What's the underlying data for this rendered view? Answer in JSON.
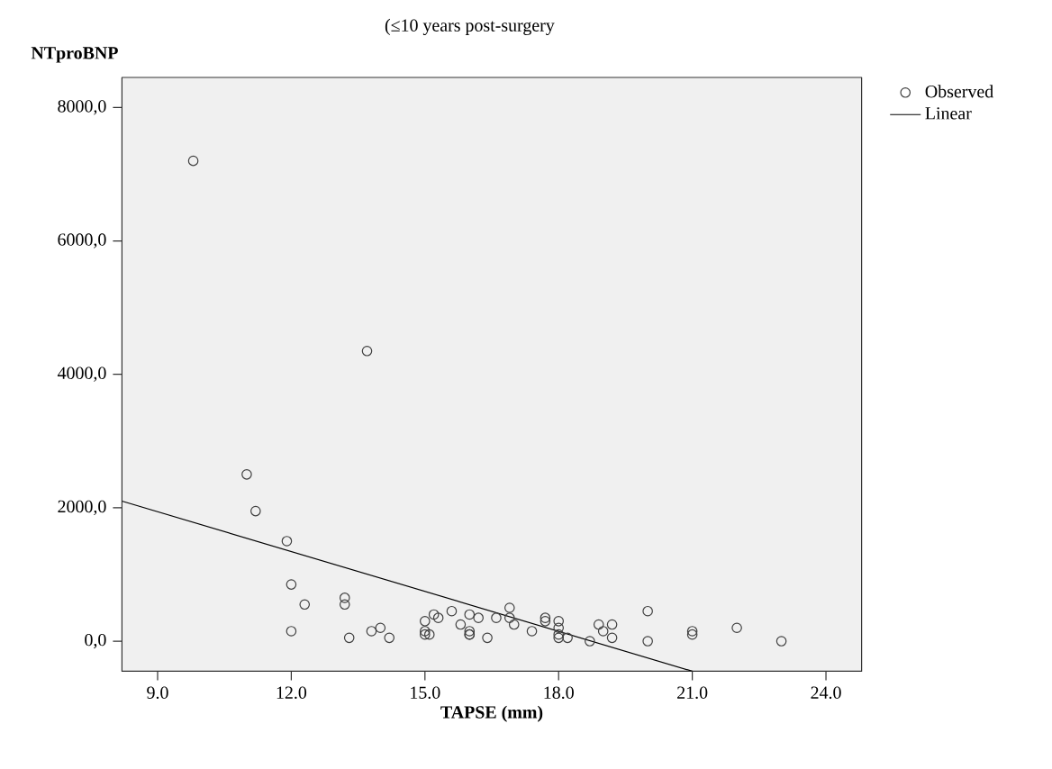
{
  "chart_data": {
    "type": "scatter",
    "title": "(≤10 years post-surgery",
    "xlabel": "TAPSE (mm)",
    "ylabel": "NTproBNP",
    "xlim": [
      8.2,
      24.8
    ],
    "ylim": [
      -450,
      8450
    ],
    "xticks": [
      {
        "value": 9,
        "label": "9.0"
      },
      {
        "value": 12,
        "label": "12.0"
      },
      {
        "value": 15,
        "label": "15.0"
      },
      {
        "value": 18,
        "label": "18.0"
      },
      {
        "value": 21,
        "label": "21.0"
      },
      {
        "value": 24,
        "label": "24.0"
      }
    ],
    "yticks": [
      {
        "value": 0,
        "label": "0,0"
      },
      {
        "value": 2000,
        "label": "2000,0"
      },
      {
        "value": 4000,
        "label": "4000,0"
      },
      {
        "value": 6000,
        "label": "6000,0"
      },
      {
        "value": 8000,
        "label": "8000,0"
      }
    ],
    "legend": "top right",
    "grid": false,
    "series": [
      {
        "name": "Observed",
        "marker": "circle",
        "color": "#404040",
        "x": [
          9.8,
          13.7,
          11.0,
          11.2,
          11.9,
          12.0,
          12.3,
          13.2,
          13.2,
          12.0,
          13.3,
          13.8,
          14.0,
          14.2,
          15.0,
          15.0,
          15.0,
          15.1,
          15.2,
          15.3,
          15.6,
          15.8,
          16.0,
          16.2,
          16.0,
          16.0,
          16.0,
          16.4,
          16.6,
          16.9,
          16.9,
          17.0,
          17.4,
          17.7,
          17.7,
          18.0,
          18.0,
          18.0,
          18.0,
          18.2,
          18.7,
          18.9,
          19.0,
          19.2,
          19.2,
          20.0,
          20.0,
          21.0,
          21.0,
          22.0,
          23.0
        ],
        "values": [
          7200,
          4350,
          2500,
          1950,
          1500,
          850,
          550,
          650,
          550,
          150,
          50,
          150,
          200,
          50,
          300,
          150,
          100,
          100,
          400,
          350,
          450,
          250,
          400,
          350,
          100,
          150,
          100,
          50,
          350,
          500,
          350,
          250,
          150,
          350,
          300,
          300,
          200,
          100,
          50,
          50,
          0,
          250,
          150,
          250,
          50,
          450,
          0,
          150,
          100,
          200,
          0
        ]
      },
      {
        "name": "Linear",
        "type": "line",
        "marker": "none",
        "color": "#000000",
        "x": [
          8.2,
          21.0
        ],
        "values": [
          2100,
          -450
        ]
      }
    ]
  }
}
